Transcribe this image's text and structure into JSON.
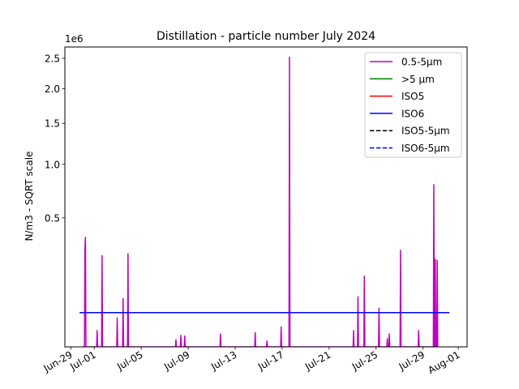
{
  "chart_data": {
    "type": "line",
    "title": "Distillation - particle number July 2024",
    "ylabel": "N/m3 - SQRT scale",
    "xlabel": "",
    "scale_note": "1e6",
    "y_scale": "sqrt",
    "ylim": [
      0,
      2700000
    ],
    "xlim": [
      "2024-06-28T12:00",
      "2024-08-01T18:00"
    ],
    "grid": false,
    "legend_position": "top-right",
    "y_ticks": [
      {
        "value": 500000,
        "label": "0.5"
      },
      {
        "value": 1000000,
        "label": "1.0"
      },
      {
        "value": 1500000,
        "label": "1.5"
      },
      {
        "value": 2000000,
        "label": "2.0"
      },
      {
        "value": 2500000,
        "label": "2.5"
      }
    ],
    "x_ticks": [
      {
        "value": "2024-06-29",
        "label": "Jun-29"
      },
      {
        "value": "2024-07-01",
        "label": "Jul-01"
      },
      {
        "value": "2024-07-05",
        "label": "Jul-05"
      },
      {
        "value": "2024-07-09",
        "label": "Jul-09"
      },
      {
        "value": "2024-07-13",
        "label": "Jul-13"
      },
      {
        "value": "2024-07-17",
        "label": "Jul-17"
      },
      {
        "value": "2024-07-21",
        "label": "Jul-21"
      },
      {
        "value": "2024-07-25",
        "label": "Jul-25"
      },
      {
        "value": "2024-07-29",
        "label": "Jul-29"
      },
      {
        "value": "2024-08-01",
        "label": "Aug-01"
      }
    ],
    "series": [
      {
        "name": "0.5-5µm",
        "color": "#bf00bf",
        "dash": "solid",
        "points": [
          [
            "2024-06-30T00:00",
            0
          ],
          [
            "2024-06-30T04:00",
            0
          ],
          [
            "2024-06-30T05:00",
            290000
          ],
          [
            "2024-06-30T06:00",
            360000
          ],
          [
            "2024-06-30T07:00",
            0
          ],
          [
            "2024-07-01T05:00",
            0
          ],
          [
            "2024-07-01T06:00",
            8000
          ],
          [
            "2024-07-01T07:00",
            0
          ],
          [
            "2024-07-01T15:00",
            0
          ],
          [
            "2024-07-01T16:00",
            250000
          ],
          [
            "2024-07-01T17:00",
            0
          ],
          [
            "2024-07-02T22:00",
            0
          ],
          [
            "2024-07-02T23:00",
            25000
          ],
          [
            "2024-07-03T00:00",
            0
          ],
          [
            "2024-07-03T10:00",
            0
          ],
          [
            "2024-07-03T11:00",
            70000
          ],
          [
            "2024-07-03T12:00",
            0
          ],
          [
            "2024-07-03T20:00",
            0
          ],
          [
            "2024-07-03T21:00",
            260000
          ],
          [
            "2024-07-03T22:00",
            0
          ],
          [
            "2024-07-07T22:00",
            0
          ],
          [
            "2024-07-07T23:00",
            1500
          ],
          [
            "2024-07-08T00:00",
            0
          ],
          [
            "2024-07-08T08:00",
            0
          ],
          [
            "2024-07-08T09:00",
            4000
          ],
          [
            "2024-07-08T10:00",
            0
          ],
          [
            "2024-07-08T16:00",
            0
          ],
          [
            "2024-07-08T17:00",
            3500
          ],
          [
            "2024-07-08T18:00",
            0
          ],
          [
            "2024-07-11T17:00",
            0
          ],
          [
            "2024-07-11T18:00",
            5000
          ],
          [
            "2024-07-11T19:00",
            0
          ],
          [
            "2024-07-14T16:00",
            0
          ],
          [
            "2024-07-14T17:00",
            6000
          ],
          [
            "2024-07-14T18:00",
            0
          ],
          [
            "2024-07-15T16:00",
            0
          ],
          [
            "2024-07-15T17:00",
            1000
          ],
          [
            "2024-07-15T18:00",
            0
          ],
          [
            "2024-07-16T21:00",
            0
          ],
          [
            "2024-07-16T22:00",
            12000
          ],
          [
            "2024-07-16T23:00",
            0
          ],
          [
            "2024-07-17T14:00",
            0
          ],
          [
            "2024-07-17T15:00",
            2520000
          ],
          [
            "2024-07-17T16:00",
            0
          ],
          [
            "2024-07-23T01:00",
            0
          ],
          [
            "2024-07-23T02:00",
            8000
          ],
          [
            "2024-07-23T03:00",
            0
          ],
          [
            "2024-07-23T10:00",
            0
          ],
          [
            "2024-07-23T11:00",
            75000
          ],
          [
            "2024-07-23T12:00",
            0
          ],
          [
            "2024-07-23T23:00",
            0
          ],
          [
            "2024-07-24T00:00",
            150000
          ],
          [
            "2024-07-24T01:00",
            0
          ],
          [
            "2024-07-25T05:00",
            0
          ],
          [
            "2024-07-25T06:00",
            45000
          ],
          [
            "2024-07-25T07:00",
            0
          ],
          [
            "2024-07-25T22:00",
            0
          ],
          [
            "2024-07-25T23:00",
            2000
          ],
          [
            "2024-07-26T00:00",
            0
          ],
          [
            "2024-07-26T02:00",
            0
          ],
          [
            "2024-07-26T03:00",
            5000
          ],
          [
            "2024-07-26T04:00",
            0
          ],
          [
            "2024-07-27T01:00",
            0
          ],
          [
            "2024-07-27T02:00",
            280000
          ],
          [
            "2024-07-27T03:00",
            0
          ],
          [
            "2024-07-28T14:00",
            0
          ],
          [
            "2024-07-28T15:00",
            8000
          ],
          [
            "2024-07-28T16:00",
            0
          ],
          [
            "2024-07-29T21:00",
            0
          ],
          [
            "2024-07-29T22:00",
            790000
          ],
          [
            "2024-07-29T23:00",
            0
          ],
          [
            "2024-07-30T00:00",
            0
          ],
          [
            "2024-07-30T01:00",
            230000
          ],
          [
            "2024-07-30T02:00",
            0
          ],
          [
            "2024-07-30T04:00",
            0
          ],
          [
            "2024-07-30T05:00",
            225000
          ],
          [
            "2024-07-30T06:00",
            0
          ]
        ]
      },
      {
        "name": ">5 µm",
        "color": "#008000",
        "dash": "solid",
        "points": []
      },
      {
        "name": "ISO5",
        "color": "#ff0000",
        "dash": "solid",
        "points": []
      },
      {
        "name": "ISO6",
        "color": "#0000ff",
        "dash": "solid",
        "points": [
          [
            "2024-06-29T18:00",
            35200
          ],
          [
            "2024-07-31T06:00",
            35200
          ]
        ]
      },
      {
        "name": "ISO5-5µm",
        "color": "#000000",
        "dash": "dashed",
        "points": []
      },
      {
        "name": "ISO6-5µm",
        "color": "#0000ff",
        "dash": "dashed",
        "points": []
      }
    ]
  }
}
